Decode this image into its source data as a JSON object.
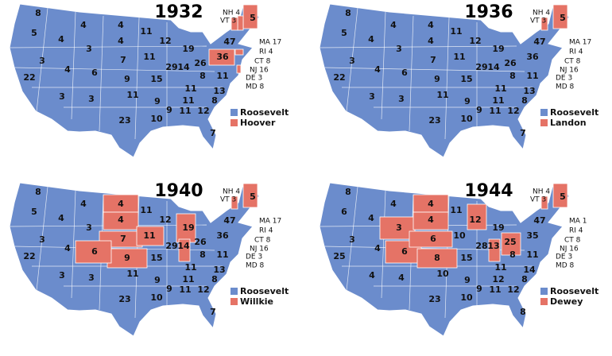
{
  "maps": [
    {
      "title": "1932",
      "labels": [
        8,
        5,
        4,
        4,
        4,
        11,
        12,
        19,
        5,
        47,
        3,
        3,
        4,
        6,
        7,
        11,
        29,
        14,
        26,
        36,
        22,
        9,
        15,
        8,
        11,
        11,
        11,
        3,
        3,
        11,
        9,
        13,
        8,
        23,
        10,
        9,
        11,
        12,
        7,
        4
      ],
      "callouts": [
        "NH 4",
        "VT 3",
        "MA 17",
        "RI 4",
        "CT 8",
        "NJ 16",
        "DE 3",
        "MD 8"
      ],
      "legend": [
        {
          "name": "Roosevelt",
          "color": "#6b8ccc"
        },
        {
          "name": "Hoover",
          "color": "#e57366"
        }
      ]
    },
    {
      "title": "1936",
      "labels": [
        8,
        5,
        4,
        4,
        4,
        11,
        12,
        19,
        5,
        47,
        3,
        3,
        4,
        6,
        7,
        11,
        29,
        14,
        26,
        36,
        22,
        9,
        15,
        8,
        11,
        11,
        11,
        3,
        3,
        11,
        9,
        13,
        8,
        23,
        10,
        9,
        11,
        12,
        7,
        4
      ],
      "callouts": [
        "NH 4",
        "VT 3",
        "MA 17",
        "RI 4",
        "CT 8",
        "NJ 16",
        "DE 3",
        "MD 8"
      ],
      "legend": [
        {
          "name": "Roosevelt",
          "color": "#6b8ccc"
        },
        {
          "name": "Landon",
          "color": "#e57366"
        }
      ]
    },
    {
      "title": "1940",
      "labels": [
        8,
        5,
        4,
        4,
        4,
        11,
        12,
        19,
        5,
        47,
        3,
        3,
        4,
        6,
        7,
        11,
        29,
        14,
        26,
        36,
        22,
        9,
        15,
        8,
        11,
        11,
        11,
        3,
        3,
        11,
        9,
        13,
        8,
        23,
        10,
        9,
        11,
        12,
        7,
        4
      ],
      "callouts": [
        "NH 4",
        "VT 3",
        "MA 17",
        "RI 4",
        "CT 8",
        "NJ 16",
        "DE 3",
        "MD 8"
      ],
      "legend": [
        {
          "name": "Roosevelt",
          "color": "#6b8ccc"
        },
        {
          "name": "Willkie",
          "color": "#e57366"
        }
      ]
    },
    {
      "title": "1944",
      "labels": [
        8,
        6,
        4,
        4,
        4,
        11,
        12,
        19,
        5,
        47,
        3,
        3,
        4,
        6,
        6,
        10,
        28,
        13,
        25,
        35,
        25,
        8,
        15,
        8,
        11,
        11,
        12,
        4,
        4,
        10,
        9,
        14,
        8,
        23,
        10,
        9,
        11,
        12,
        8,
        4
      ],
      "callouts": [
        "NH 4",
        "VT 3",
        "MA 1",
        "RI 4",
        "CT 8",
        "NJ 16",
        "DE 3",
        "MD 8"
      ],
      "legend": [
        {
          "name": "Roosevelt",
          "color": "#6b8ccc"
        },
        {
          "name": "Dewey",
          "color": "#e57366"
        }
      ]
    }
  ]
}
